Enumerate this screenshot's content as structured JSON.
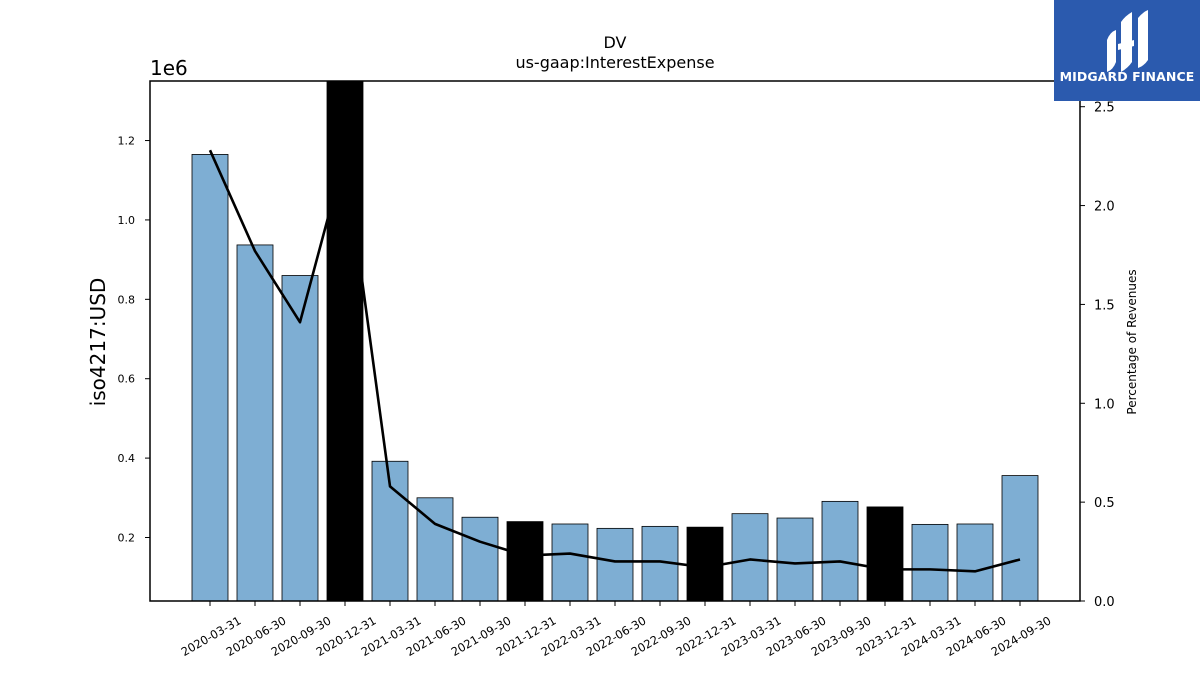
{
  "logo": {
    "text": "MIDGARD FINANCE",
    "bg_color": "#2b5aae"
  },
  "chart_data": {
    "type": "bar",
    "title": "DV",
    "subtitle": "us-gaap:InterestExpense",
    "ylabel": "iso4217:USD",
    "y2label": "Percentage of Revenues",
    "y_multiplier_label": "1e6",
    "categories": [
      "2020-03-31",
      "2020-06-30",
      "2020-09-30",
      "2020-12-31",
      "2021-03-31",
      "2021-06-30",
      "2021-09-30",
      "2021-12-31",
      "2022-03-31",
      "2022-06-30",
      "2022-09-30",
      "2022-12-31",
      "2023-03-31",
      "2023-06-30",
      "2023-09-30",
      "2023-12-31",
      "2024-03-31",
      "2024-06-30",
      "2024-09-30"
    ],
    "series": [
      {
        "type": "bar",
        "values": [
          1165000,
          937000,
          860000,
          1360000,
          392000,
          300000,
          251000,
          240000,
          234000,
          223000,
          228000,
          226000,
          260000,
          249000,
          291000,
          277000,
          233000,
          234000,
          356000
        ],
        "bar_colors": [
          "#7eaed3",
          "#7eaed3",
          "#7eaed3",
          "#000000",
          "#7eaed3",
          "#7eaed3",
          "#7eaed3",
          "#000000",
          "#7eaed3",
          "#7eaed3",
          "#7eaed3",
          "#000000",
          "#7eaed3",
          "#7eaed3",
          "#7eaed3",
          "#000000",
          "#7eaed3",
          "#7eaed3",
          "#7eaed3"
        ]
      },
      {
        "type": "line",
        "axis": "right",
        "color": "#000000",
        "values": [
          2.28,
          1.77,
          1.41,
          2.26,
          0.58,
          0.39,
          0.3,
          0.23,
          0.24,
          0.2,
          0.2,
          0.17,
          0.21,
          0.19,
          0.2,
          0.16,
          0.16,
          0.15,
          0.21
        ]
      }
    ],
    "ylim": [
      40000,
      1350000
    ],
    "yticks": [
      0.2,
      0.4,
      0.6,
      0.8,
      1.0,
      1.2
    ],
    "y2lim": [
      0,
      2.63
    ],
    "y2ticks": [
      0.0,
      0.5,
      1.0,
      1.5,
      2.0,
      2.5
    ],
    "grid": false
  }
}
